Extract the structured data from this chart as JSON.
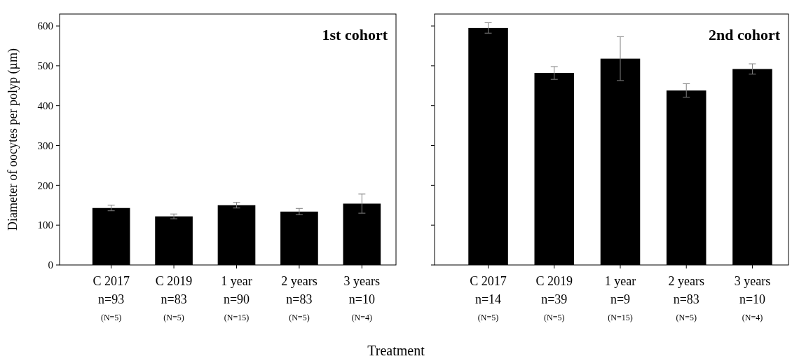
{
  "chart_data": [
    {
      "type": "bar",
      "title": "1st cohort",
      "ylabel": "Diameter of oocytes per polyp (µm)",
      "categories": [
        "C 2017\nn=93\n(N=5)",
        "C 2019\nn=83\n(N=5)",
        "1 year\nn=90\n(N=15)",
        "2 years\nn=83\n(N=5)",
        "3 years\nn=10\n(N=4)"
      ],
      "series": [
        {
          "color": "#000000",
          "values": [
            143,
            122,
            150,
            134,
            154
          ],
          "errors": [
            7,
            6,
            7,
            8,
            24
          ]
        }
      ],
      "ylim": [
        0,
        630
      ],
      "yticks": [
        0,
        100,
        200,
        300,
        400,
        500,
        600
      ],
      "grid": false
    },
    {
      "type": "bar",
      "title": "2nd cohort",
      "xlabel": "Treatment",
      "categories": [
        "C 2017\nn=14\n(N=5)",
        "C 2019\nn=39\n(N=5)",
        "1 year\nn=9\n(N=15)",
        "2 years\nn=83\n(N=5)",
        "3 years\nn=10\n(N=4)"
      ],
      "series": [
        {
          "color": "#000000",
          "values": [
            595,
            482,
            518,
            438,
            492
          ],
          "errors": [
            13,
            16,
            55,
            17,
            13
          ]
        }
      ],
      "ylim": [
        0,
        630
      ],
      "yticks": [
        0,
        100,
        200,
        300,
        400,
        500,
        600
      ],
      "grid": false,
      "tick_labels": "x"
    }
  ]
}
